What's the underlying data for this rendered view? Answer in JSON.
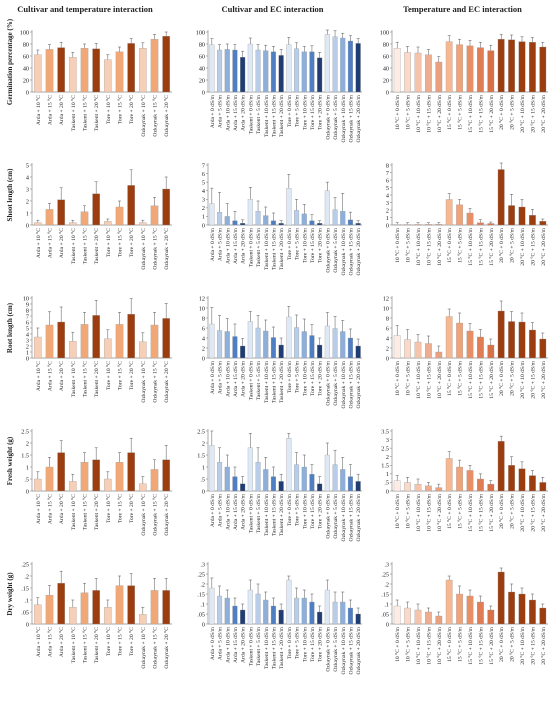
{
  "titles": {
    "col1": "Cultivar and temperature interaction",
    "col2": "Cultivar and EC interaction",
    "col3": "Temperature and EC interaction"
  },
  "colors": {
    "cultivar_temp": [
      "#f7cfb6",
      "#f2a876",
      "#9c3d10"
    ],
    "cultivar_ec": [
      "#dfe9f6",
      "#b8cde9",
      "#8eafdb",
      "#4f7fc3",
      "#1f3d73"
    ],
    "temp_ec": [
      "#fce9e0",
      "#f7cbb5",
      "#9c3d10"
    ],
    "axis": "#888888",
    "error_bar": "#555555"
  },
  "categories": {
    "col1": [
      "Arda + 10 °C",
      "Arda + 15 °C",
      "Arda + 20 °C",
      "Taskent + 10 °C",
      "Taskent + 15 °C",
      "Taskent + 20 °C",
      "Tore + 10 °C",
      "Tore + 15 °C",
      "Tore + 20 °C",
      "Ozkaynak + 10 °C",
      "Ozkaynak + 15 °C",
      "Ozkaynak + 20 °C"
    ],
    "col2": [
      "Arda + 0 dS/m",
      "Arda + 5 dS/m",
      "Arda + 10 dS/m",
      "Arda + 15 dS/m",
      "Arda + 20 dS/m",
      "Taskent + 0 dS/m",
      "Taskent + 5 dS/m",
      "Taskent + 10 dS/m",
      "Taskent + 15 dS/m",
      "Taskent + 20 dS/m",
      "Tore + 0 dS/m",
      "Tore + 5 dS/m",
      "Tore + 10 dS/m",
      "Tore + 15 dS/m",
      "Tore + 20 dS/m",
      "Ozkaynak + 0 dS/m",
      "Ozkaynak + 5 dS/m",
      "Ozkaynak + 10 dS/m",
      "Ozkaynak + 15 dS/m",
      "Ozkaynak + 20 dS/m"
    ],
    "col3": [
      "10 °C + 0 dS/m",
      "10 °C + 5 dS/m",
      "10 °C + 10 dS/m",
      "10 °C + 15 dS/m",
      "10 °C + 20 dS/m",
      "15 °C + 0 dS/m",
      "15 °C + 5 dS/m",
      "15 °C + 10 dS/m",
      "15 °C + 15 dS/m",
      "15 °C + 20 dS/m",
      "20 °C + 0 dS/m",
      "20 °C + 5 dS/m",
      "20 °C + 10 dS/m",
      "20 °C + 15 dS/m",
      "20 °C + 20 dS/m"
    ]
  },
  "chart_data": [
    {
      "type": "bar",
      "ylabel": "Germination percentage (%)",
      "ylim": [
        0,
        100
      ],
      "yticks": [
        0,
        20,
        40,
        60,
        80,
        100
      ],
      "cat_key": "col1",
      "color_key": "cultivar_temp",
      "values": [
        62,
        71,
        74,
        58,
        73,
        72,
        54,
        67,
        81,
        73,
        88,
        93
      ],
      "errors": [
        8,
        8,
        9,
        8,
        7,
        9,
        8,
        8,
        8,
        9,
        8,
        7
      ]
    },
    {
      "type": "bar",
      "ylabel": "",
      "ylim": [
        0,
        100
      ],
      "yticks": [
        0,
        20,
        40,
        60,
        80,
        100
      ],
      "cat_key": "col2",
      "color_key": "cultivar_ec",
      "values": [
        79,
        70,
        71,
        70,
        58,
        80,
        70,
        69,
        67,
        61,
        79,
        72,
        67,
        67,
        57,
        96,
        92,
        90,
        85,
        81
      ],
      "errors": [
        10,
        9,
        9,
        9,
        10,
        10,
        9,
        9,
        9,
        10,
        12,
        10,
        9,
        10,
        9,
        12,
        10,
        8,
        9,
        8
      ]
    },
    {
      "type": "bar",
      "ylabel": "",
      "ylim": [
        0,
        100
      ],
      "yticks": [
        0,
        20,
        40,
        60,
        80,
        100
      ],
      "cat_key": "col3",
      "color_key": "temp_ec",
      "values": [
        73,
        66,
        65,
        62,
        50,
        84,
        79,
        77,
        74,
        69,
        88,
        87,
        84,
        83,
        75
      ],
      "errors": [
        10,
        10,
        10,
        9,
        9,
        10,
        9,
        9,
        9,
        9,
        8,
        8,
        8,
        8,
        8
      ]
    },
    {
      "type": "bar",
      "ylabel": "Shoot length (cm)",
      "ylim": [
        0,
        5
      ],
      "yticks": [
        0,
        1,
        2,
        3,
        4,
        5
      ],
      "cat_key": "col1",
      "color_key": "cultivar_temp",
      "values": [
        0.2,
        1.3,
        2.1,
        0.2,
        1.1,
        2.6,
        0.3,
        1.5,
        3.3,
        0.2,
        1.6,
        3.0
      ],
      "errors": [
        0.2,
        0.5,
        1.0,
        0.2,
        0.5,
        1.0,
        0.2,
        0.5,
        1.3,
        0.2,
        0.7,
        1.0
      ]
    },
    {
      "type": "bar",
      "ylabel": "",
      "ylim": [
        0,
        7
      ],
      "yticks": [
        0,
        1,
        2,
        3,
        4,
        5,
        6,
        7
      ],
      "cat_key": "col2",
      "color_key": "cultivar_ec",
      "values": [
        2.5,
        1.5,
        1.0,
        0.5,
        0.2,
        3.0,
        1.6,
        1.1,
        0.5,
        0.2,
        4.3,
        1.7,
        1.3,
        0.5,
        0.2,
        4.0,
        1.8,
        1.6,
        0.6,
        0.2
      ],
      "errors": [
        1.8,
        2.3,
        1.5,
        1.1,
        0.4,
        1.4,
        1.2,
        1.0,
        0.9,
        0.3,
        1.6,
        1.3,
        1.1,
        0.7,
        0.3,
        1.0,
        1.4,
        2.1,
        0.9,
        0.3
      ]
    },
    {
      "type": "bar",
      "ylabel": "",
      "ylim": [
        0,
        8
      ],
      "yticks": [
        0,
        1,
        2,
        3,
        4,
        5,
        6,
        7,
        8
      ],
      "cat_key": "col3",
      "color_key": "temp_ec",
      "values": [
        0.1,
        0.1,
        0.1,
        0.1,
        0.1,
        3.4,
        2.7,
        1.6,
        0.3,
        0.2,
        7.4,
        2.6,
        2.4,
        1.3,
        0.5
      ],
      "errors": [
        0.2,
        0.2,
        0.2,
        0.2,
        0.2,
        0.8,
        0.7,
        0.6,
        0.4,
        0.2,
        1.2,
        1.5,
        1.0,
        0.8,
        0.3
      ]
    },
    {
      "type": "bar",
      "ylabel": "Root length (cm)",
      "ylim": [
        0,
        10
      ],
      "yticks": [
        0,
        1,
        2,
        3,
        4,
        5,
        6,
        7,
        8,
        9,
        10
      ],
      "cat_key": "col1",
      "color_key": "cultivar_temp",
      "values": [
        3.5,
        5.5,
        6.0,
        2.8,
        5.6,
        7.1,
        3.2,
        5.6,
        7.3,
        2.7,
        5.5,
        6.6
      ],
      "errors": [
        1.5,
        2.2,
        2.5,
        1.5,
        2.0,
        2.5,
        1.5,
        2.0,
        2.6,
        1.5,
        2.1,
        2.5
      ]
    },
    {
      "type": "bar",
      "ylabel": "",
      "ylim": [
        0,
        12
      ],
      "yticks": [
        0,
        2,
        4,
        6,
        8,
        10,
        12
      ],
      "cat_key": "col2",
      "color_key": "cultivar_ec",
      "values": [
        6.8,
        5.5,
        5.3,
        4.3,
        2.4,
        7.3,
        6.0,
        5.4,
        4.1,
        2.6,
        8.2,
        6.1,
        5.3,
        4.5,
        2.6,
        6.4,
        5.9,
        5.3,
        4.0,
        2.4
      ],
      "errors": [
        3.3,
        3.0,
        2.6,
        2.5,
        1.5,
        2.0,
        2.5,
        2.2,
        2.1,
        1.4,
        2.1,
        2.5,
        2.5,
        2.2,
        1.4,
        2.7,
        2.4,
        2.2,
        1.8,
        1.4
      ]
    },
    {
      "type": "bar",
      "ylabel": "",
      "ylim": [
        0,
        12
      ],
      "yticks": [
        0,
        2,
        4,
        6,
        8,
        10,
        12
      ],
      "cat_key": "col3",
      "color_key": "temp_ec",
      "values": [
        4.5,
        3.7,
        3.2,
        2.9,
        1.2,
        8.3,
        7.0,
        5.4,
        4.2,
        2.6,
        9.4,
        7.3,
        7.2,
        5.6,
        3.8
      ],
      "errors": [
        2.0,
        2.0,
        1.5,
        1.5,
        1.2,
        1.5,
        2.0,
        1.5,
        1.5,
        1.2,
        2.0,
        2.0,
        1.8,
        1.5,
        1.2
      ]
    },
    {
      "type": "bar",
      "ylabel": "Fresh weight (g)",
      "ylim": [
        0,
        2.5
      ],
      "yticks": [
        0,
        0.5,
        1,
        1.5,
        2,
        2.5
      ],
      "cat_key": "col1",
      "color_key": "cultivar_temp",
      "values": [
        0.5,
        1.0,
        1.6,
        0.4,
        1.2,
        1.3,
        0.5,
        1.2,
        1.6,
        0.3,
        0.9,
        1.3
      ],
      "errors": [
        0.3,
        0.4,
        0.5,
        0.3,
        0.4,
        0.5,
        0.3,
        0.4,
        0.6,
        0.3,
        0.4,
        0.6
      ]
    },
    {
      "type": "bar",
      "ylabel": "",
      "ylim": [
        0,
        2.5
      ],
      "yticks": [
        0,
        0.5,
        1,
        1.5,
        2,
        2.5
      ],
      "cat_key": "col2",
      "color_key": "cultivar_ec",
      "values": [
        1.9,
        1.2,
        1.0,
        0.6,
        0.3,
        1.8,
        1.2,
        0.9,
        0.6,
        0.4,
        2.2,
        1.1,
        1.0,
        0.7,
        0.3,
        1.5,
        1.1,
        0.9,
        0.6,
        0.4
      ],
      "errors": [
        0.6,
        0.6,
        0.5,
        0.4,
        0.3,
        0.6,
        0.6,
        0.5,
        0.4,
        0.3,
        0.2,
        0.5,
        0.5,
        0.4,
        0.3,
        0.5,
        0.6,
        0.5,
        0.5,
        0.3
      ]
    },
    {
      "type": "bar",
      "ylabel": "",
      "ylim": [
        0,
        3.5
      ],
      "yticks": [
        0,
        0.5,
        1,
        1.5,
        2,
        2.5,
        3,
        3.5
      ],
      "cat_key": "col3",
      "color_key": "temp_ec",
      "values": [
        0.6,
        0.5,
        0.4,
        0.3,
        0.2,
        1.9,
        1.4,
        1.2,
        0.7,
        0.4,
        2.9,
        1.5,
        1.3,
        0.9,
        0.5
      ],
      "errors": [
        0.3,
        0.3,
        0.3,
        0.2,
        0.2,
        0.4,
        0.4,
        0.3,
        0.3,
        0.2,
        0.3,
        0.5,
        0.4,
        0.3,
        0.3
      ]
    },
    {
      "type": "bar",
      "ylabel": "Dry weight (g)",
      "ylim": [
        0,
        0.25
      ],
      "yticks": [
        0,
        0.05,
        0.1,
        0.15,
        0.2,
        0.25
      ],
      "cat_key": "col1",
      "color_key": "cultivar_temp",
      "values": [
        0.08,
        0.12,
        0.17,
        0.07,
        0.13,
        0.14,
        0.07,
        0.16,
        0.16,
        0.04,
        0.14,
        0.14
      ],
      "errors": [
        0.03,
        0.04,
        0.05,
        0.03,
        0.04,
        0.05,
        0.03,
        0.04,
        0.05,
        0.03,
        0.05,
        0.05
      ]
    },
    {
      "type": "bar",
      "ylabel": "",
      "ylim": [
        0,
        0.3
      ],
      "yticks": [
        0,
        0.05,
        0.1,
        0.15,
        0.2,
        0.25,
        0.3
      ],
      "cat_key": "col2",
      "color_key": "cultivar_ec",
      "values": [
        0.18,
        0.14,
        0.13,
        0.09,
        0.07,
        0.17,
        0.15,
        0.12,
        0.09,
        0.07,
        0.22,
        0.13,
        0.13,
        0.11,
        0.06,
        0.17,
        0.11,
        0.11,
        0.08,
        0.05
      ],
      "errors": [
        0.05,
        0.05,
        0.04,
        0.04,
        0.03,
        0.05,
        0.05,
        0.04,
        0.04,
        0.03,
        0.02,
        0.05,
        0.04,
        0.04,
        0.03,
        0.05,
        0.05,
        0.05,
        0.04,
        0.03
      ]
    },
    {
      "type": "bar",
      "ylabel": "",
      "ylim": [
        0,
        0.3
      ],
      "yticks": [
        0,
        0.05,
        0.1,
        0.15,
        0.2,
        0.25,
        0.3
      ],
      "cat_key": "col3",
      "color_key": "temp_ec",
      "values": [
        0.09,
        0.08,
        0.07,
        0.06,
        0.04,
        0.22,
        0.15,
        0.14,
        0.11,
        0.07,
        0.26,
        0.16,
        0.15,
        0.12,
        0.08
      ],
      "errors": [
        0.03,
        0.03,
        0.03,
        0.02,
        0.02,
        0.02,
        0.04,
        0.03,
        0.03,
        0.02,
        0.02,
        0.04,
        0.03,
        0.03,
        0.02
      ]
    }
  ]
}
